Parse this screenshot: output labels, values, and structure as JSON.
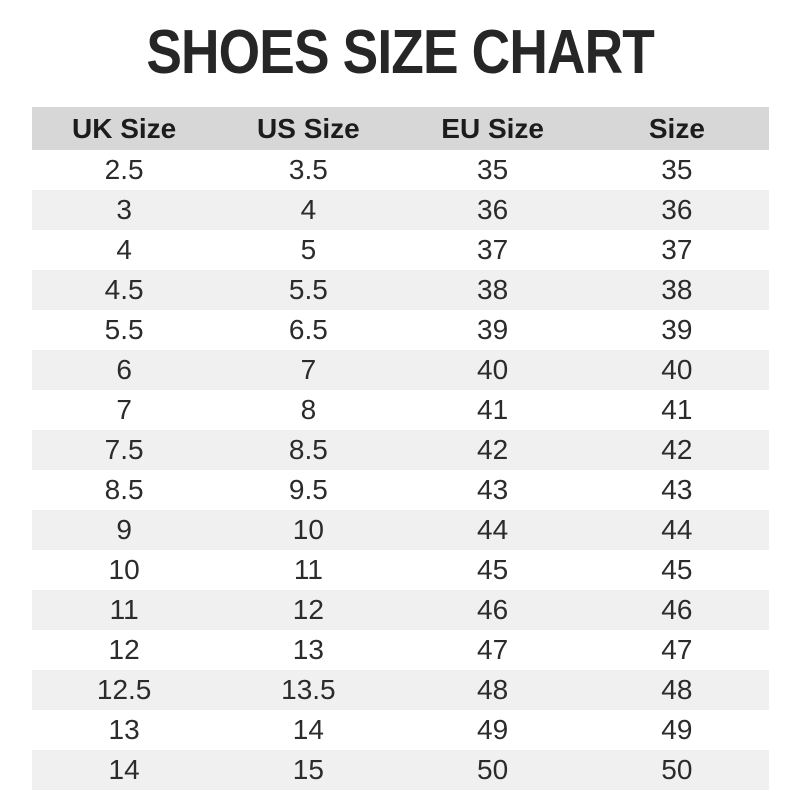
{
  "page": {
    "title": "SHOES SIZE CHART"
  },
  "colors": {
    "background": "#ffffff",
    "title_text": "#262626",
    "header_bg": "#d7d7d7",
    "row_alt_bg": "#f0f0f0",
    "row_bg": "#ffffff",
    "cell_text": "#2b2b2b"
  },
  "chart_data": {
    "type": "table",
    "title": "SHOES SIZE CHART",
    "columns": [
      "UK Size",
      "US Size",
      "EU Size",
      "Size"
    ],
    "rows": [
      [
        "2.5",
        "3.5",
        "35",
        "35"
      ],
      [
        "3",
        "4",
        "36",
        "36"
      ],
      [
        "4",
        "5",
        "37",
        "37"
      ],
      [
        "4.5",
        "5.5",
        "38",
        "38"
      ],
      [
        "5.5",
        "6.5",
        "39",
        "39"
      ],
      [
        "6",
        "7",
        "40",
        "40"
      ],
      [
        "7",
        "8",
        "41",
        "41"
      ],
      [
        "7.5",
        "8.5",
        "42",
        "42"
      ],
      [
        "8.5",
        "9.5",
        "43",
        "43"
      ],
      [
        "9",
        "10",
        "44",
        "44"
      ],
      [
        "10",
        "11",
        "45",
        "45"
      ],
      [
        "11",
        "12",
        "46",
        "46"
      ],
      [
        "12",
        "13",
        "47",
        "47"
      ],
      [
        "12.5",
        "13.5",
        "48",
        "48"
      ],
      [
        "13",
        "14",
        "49",
        "49"
      ],
      [
        "14",
        "15",
        "50",
        "50"
      ]
    ],
    "layout": {
      "row_striping": "even rows shaded",
      "alignment": "center",
      "grid": "off"
    }
  }
}
